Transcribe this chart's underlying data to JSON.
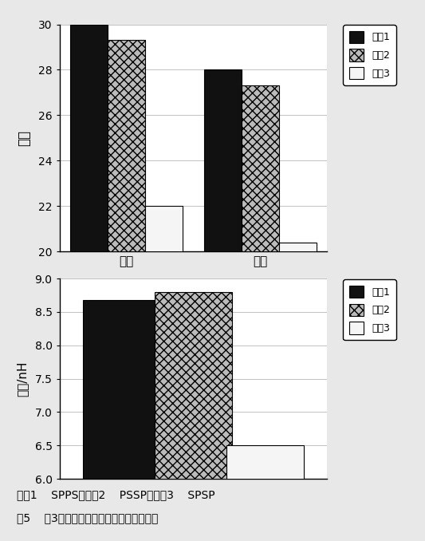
{
  "chart1": {
    "categories": [
      "初级",
      "次级"
    ],
    "series": [
      [
        30.0,
        28.0
      ],
      [
        29.3,
        27.3
      ],
      [
        22.0,
        20.4
      ]
    ],
    "ylabel": "阻抗",
    "ylim": [
      20,
      30
    ],
    "yticks": [
      20,
      22,
      24,
      26,
      28,
      30
    ]
  },
  "chart2": {
    "series_values": [
      8.68,
      8.8,
      6.5
    ],
    "ylabel": "漏感/nH",
    "ylim": [
      6,
      9
    ],
    "yticks": [
      6,
      6.5,
      7,
      7.5,
      8,
      8.5,
      9
    ]
  },
  "legend_labels": [
    "系列1",
    "系列2",
    "系列3"
  ],
  "bar_width": 0.28,
  "colors": [
    "#111111",
    "#bbbbbb",
    "#f5f5f5"
  ],
  "caption_line1": "系列1    SPPS；系列2    PSSP；系列3    SPSP",
  "caption_line2": "图5    在3种不同结构下的阻抗和漏感的比较",
  "bg_color": "#e8e8e8",
  "plot_bg": "#ffffff"
}
